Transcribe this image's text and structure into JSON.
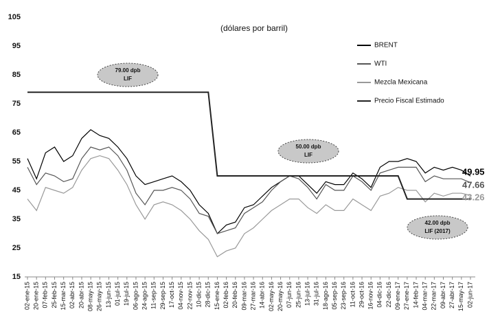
{
  "chart_data": {
    "type": "line",
    "subtitle": "(dólares por barril)",
    "categories": [
      "02-ene-15",
      "20-ene-15",
      "07-feb-15",
      "25-feb-15",
      "15-mar-15",
      "02-abr-15",
      "20-abr-15",
      "08-may-15",
      "26-may-15",
      "13-jun-15",
      "01-jul-15",
      "19-jul-15",
      "06-ago-15",
      "24-ago-15",
      "11-sep-15",
      "29-sep-15",
      "17-oct-15",
      "04-nov-15",
      "22-nov-15",
      "10-dic-15",
      "28-dic-15",
      "15-ene-16",
      "02-feb-16",
      "20-feb-16",
      "09-mar-16",
      "27-mar-16",
      "14-abr-16",
      "02-may-16",
      "20-may-16",
      "07-jun-16",
      "25-jun-16",
      "13-jul-16",
      "31-jul-16",
      "18-ago-16",
      "05-sep-16",
      "23-sep-16",
      "11-oct-16",
      "29-oct-16",
      "16-nov-16",
      "04-dic-16",
      "22-dic-16",
      "09-ene-17",
      "27-ene-17",
      "14-feb-17",
      "04-mar-17",
      "22-mar-17",
      "09-abr-17",
      "27-abr-17",
      "15-may-17",
      "02-jun-17"
    ],
    "series": [
      {
        "name": "BRENT",
        "color": "#000000",
        "values": [
          56,
          49,
          58,
          60,
          55,
          57,
          63,
          66,
          64,
          63,
          60,
          56,
          50,
          47,
          48,
          49,
          50,
          48,
          45,
          40,
          37,
          30,
          33,
          34,
          39,
          40,
          43,
          46,
          48,
          50,
          50,
          47,
          44,
          48,
          47,
          47,
          51,
          49,
          46,
          53,
          55,
          55,
          56,
          55,
          51,
          53,
          52,
          53,
          52,
          49.95
        ]
      },
      {
        "name": "WTI",
        "color": "#555555",
        "values": [
          53,
          47,
          51,
          50,
          48,
          49,
          56,
          60,
          59,
          60,
          57,
          52,
          44,
          40,
          45,
          45,
          46,
          45,
          42,
          37,
          36,
          30,
          31,
          32,
          37,
          39,
          41,
          45,
          48,
          50,
          49,
          46,
          42,
          47,
          45,
          45,
          50,
          48,
          45,
          51,
          52,
          53,
          53,
          53,
          48,
          50,
          49,
          49,
          49,
          47.66
        ]
      },
      {
        "name": "Mezcla Mexicana",
        "color": "#999999",
        "values": [
          42,
          38,
          46,
          45,
          44,
          46,
          52,
          56,
          57,
          56,
          52,
          47,
          40,
          35,
          40,
          41,
          40,
          38,
          35,
          31,
          28,
          22,
          24,
          25,
          30,
          32,
          35,
          38,
          40,
          42,
          42,
          39,
          37,
          40,
          38,
          38,
          42,
          40,
          38,
          43,
          44,
          46,
          45,
          45,
          41,
          44,
          43,
          44,
          44,
          43.26
        ]
      },
      {
        "name": "Precio Fiscal Estimado",
        "color": "#222222",
        "values": [
          79,
          79,
          79,
          79,
          79,
          79,
          79,
          79,
          79,
          79,
          79,
          79,
          79,
          79,
          79,
          79,
          79,
          79,
          79,
          79,
          79,
          50,
          50,
          50,
          50,
          50,
          50,
          50,
          50,
          50,
          50,
          50,
          50,
          50,
          50,
          50,
          50,
          50,
          50,
          50,
          50,
          50,
          42,
          42,
          42,
          42,
          42,
          42,
          42,
          42
        ]
      }
    ],
    "annotations": [
      [
        "79.00 dpb",
        "LIF"
      ],
      [
        "50.00 dpb",
        "LIF"
      ],
      [
        "42.00 dpb",
        "LIF (2017)"
      ]
    ],
    "ylim": [
      15,
      105
    ],
    "yticks": [
      15,
      25,
      35,
      45,
      55,
      65,
      75,
      85,
      95,
      105
    ],
    "grid": false
  }
}
